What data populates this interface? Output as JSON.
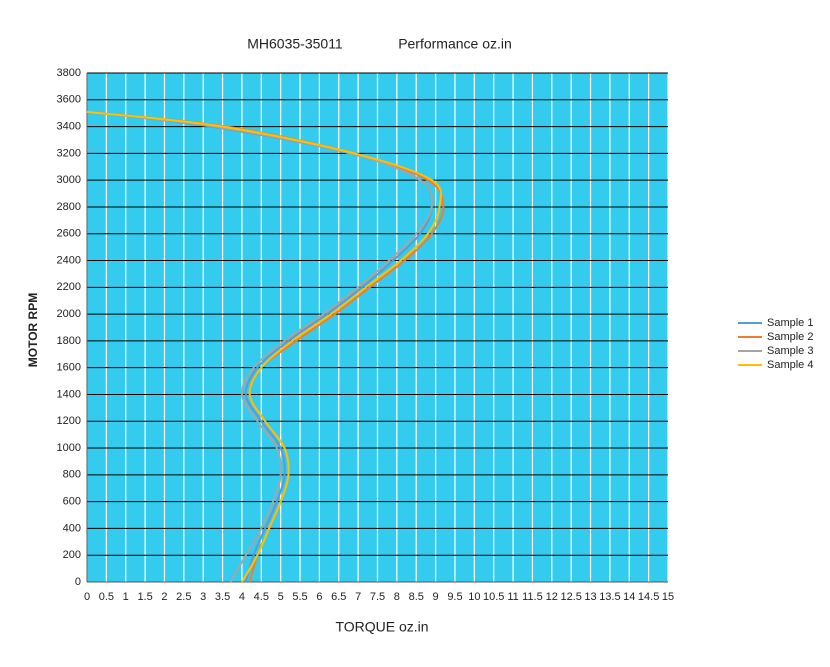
{
  "chart_data": {
    "type": "line",
    "title": "MH6035-35011",
    "subtitle": "Performance oz.in",
    "x_label": "TORQUE  oz.in",
    "y_label": "MOTOR RPM",
    "xlim": [
      0,
      15
    ],
    "ylim": [
      0,
      3800
    ],
    "xticks": [
      0,
      0.5,
      1,
      1.5,
      2,
      2.5,
      3,
      3.5,
      4,
      4.5,
      5,
      5.5,
      6,
      6.5,
      7,
      7.5,
      8,
      8.5,
      9,
      9.5,
      10,
      10.5,
      11,
      11.5,
      12,
      12.5,
      13,
      13.5,
      14,
      14.5,
      15
    ],
    "yticks": [
      0,
      200,
      400,
      600,
      800,
      1000,
      1200,
      1400,
      1600,
      1800,
      2000,
      2200,
      2400,
      2600,
      2800,
      3000,
      3200,
      3400,
      3600,
      3800
    ],
    "grid": true,
    "background": "#33ccee",
    "legend": "right",
    "series": [
      {
        "name": "Sample 1",
        "color": "#5b9bd5",
        "x": [
          4.1,
          4.3,
          4.6,
          4.9,
          5.1,
          5.0,
          4.5,
          4.1,
          4.4,
          5.2,
          6.2,
          7.1,
          7.9,
          8.6,
          8.9,
          8.6,
          6.8,
          3.2,
          0
        ],
        "values": [
          0,
          200,
          400,
          600,
          800,
          1000,
          1200,
          1400,
          1600,
          1800,
          2000,
          2200,
          2400,
          2600,
          2800,
          3000,
          3200,
          3400,
          3510
        ]
      },
      {
        "name": "Sample 2",
        "color": "#ed7d31",
        "x": [
          4.2,
          4.4,
          4.7,
          5.0,
          5.2,
          5.1,
          4.6,
          4.2,
          4.5,
          5.4,
          6.4,
          7.3,
          8.2,
          8.9,
          9.2,
          8.8,
          6.9,
          3.6,
          0
        ],
        "values": [
          0,
          200,
          400,
          600,
          800,
          1000,
          1200,
          1400,
          1600,
          1800,
          2000,
          2200,
          2400,
          2600,
          2800,
          3000,
          3200,
          3400,
          3510
        ]
      },
      {
        "name": "Sample 3",
        "color": "#a5a5a5",
        "x": [
          3.7,
          4.1,
          4.5,
          4.8,
          5.0,
          4.9,
          4.4,
          4.0,
          4.3,
          5.1,
          6.1,
          7.0,
          7.8,
          8.5,
          8.9,
          8.6,
          6.8,
          3.3,
          0
        ],
        "values": [
          0,
          200,
          400,
          600,
          800,
          1000,
          1200,
          1400,
          1600,
          1800,
          2000,
          2200,
          2400,
          2600,
          2800,
          3000,
          3200,
          3400,
          3510
        ]
      },
      {
        "name": "Sample 4",
        "color": "#ffc000",
        "x": [
          4.0,
          4.4,
          4.7,
          5.0,
          5.2,
          5.1,
          4.6,
          4.2,
          4.5,
          5.3,
          6.3,
          7.2,
          8.1,
          8.8,
          9.1,
          8.9,
          6.9,
          3.5,
          0
        ],
        "values": [
          0,
          200,
          400,
          600,
          800,
          1000,
          1200,
          1400,
          1600,
          1800,
          2000,
          2200,
          2400,
          2600,
          2800,
          3000,
          3200,
          3400,
          3510
        ]
      }
    ]
  }
}
